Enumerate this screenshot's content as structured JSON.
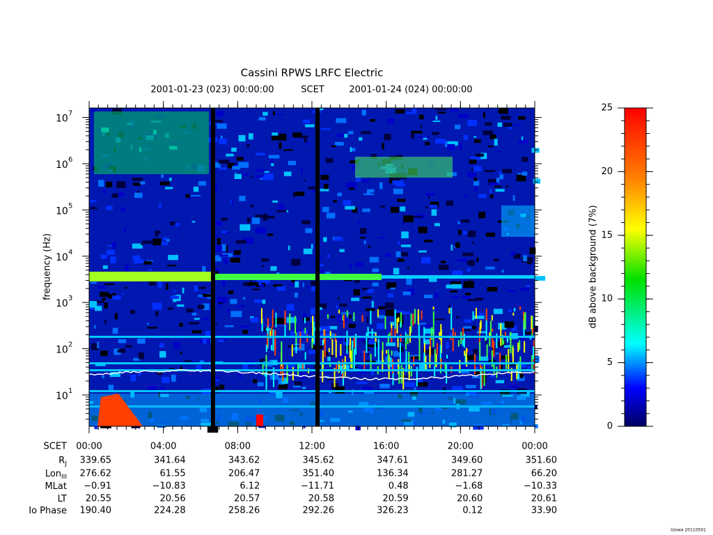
{
  "chart_data": {
    "type": "spectrogram",
    "title": "Cassini RPWS LRFC Electric",
    "subtitle_left": "2001-01-23 (023) 00:00:00",
    "subtitle_mid": "SCET",
    "subtitle_right": "2001-01-24 (024) 00:00:00",
    "ylabel": "frequency (Hz)",
    "yscale": "log",
    "ylim": [
      2.1,
      16000000
    ],
    "yticks": [
      {
        "value": 10,
        "label": "10",
        "exponent": "1"
      },
      {
        "value": 100,
        "label": "10",
        "exponent": "2"
      },
      {
        "value": 1000,
        "label": "10",
        "exponent": "3"
      },
      {
        "value": 10000,
        "label": "10",
        "exponent": "4"
      },
      {
        "value": 100000,
        "label": "10",
        "exponent": "5"
      },
      {
        "value": 1000000,
        "label": "10",
        "exponent": "6"
      },
      {
        "value": 10000000,
        "label": "10",
        "exponent": "7"
      }
    ],
    "xlim": [
      0,
      24
    ],
    "xticks": [
      {
        "value": 0,
        "label": "00:00"
      },
      {
        "value": 4,
        "label": "04:00"
      },
      {
        "value": 8,
        "label": "08:00"
      },
      {
        "value": 12,
        "label": "12:00"
      },
      {
        "value": 16,
        "label": "16:00"
      },
      {
        "value": 20,
        "label": "20:00"
      },
      {
        "value": 24,
        "label": "00:00"
      }
    ],
    "xtick_row_label": "SCET",
    "ephemeris": [
      {
        "label": "R",
        "sub": "J",
        "values": [
          "339.65",
          "341.64",
          "343.62",
          "345.62",
          "347.61",
          "349.60",
          "351.60"
        ]
      },
      {
        "label": "Lon",
        "sub": "III",
        "values": [
          "276.62",
          "61.55",
          "206.47",
          "351.40",
          "136.34",
          "281.27",
          "66.20"
        ]
      },
      {
        "label": "MLat",
        "values": [
          "−0.91",
          "−10.83",
          "6.12",
          "−11.71",
          "0.48",
          "−1.68",
          "−10.33"
        ]
      },
      {
        "label": "LT",
        "values": [
          "20.55",
          "20.56",
          "20.57",
          "20.58",
          "20.59",
          "20.60",
          "20.61"
        ]
      },
      {
        "label": "Io Phase",
        "values": [
          "190.40",
          "224.28",
          "258.26",
          "292.26",
          "326.23",
          "0.12",
          "33.90"
        ]
      }
    ],
    "colorbar": {
      "label": "dB above background (7%)",
      "clim": [
        0,
        25
      ],
      "ticks": [
        0,
        5,
        10,
        15,
        20,
        25
      ]
    },
    "footer": "Uiowa 20110501"
  }
}
